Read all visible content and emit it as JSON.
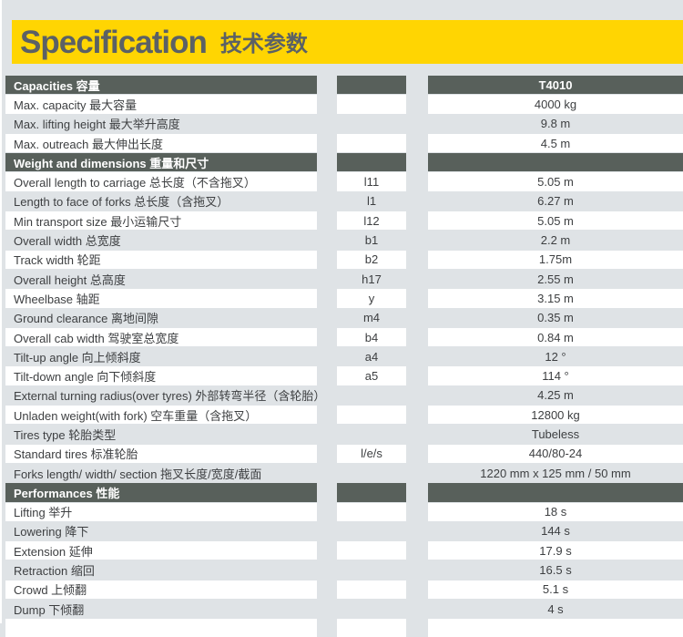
{
  "header": {
    "title_en": "Specification",
    "title_cn": "技术参数"
  },
  "model": "T4010",
  "colors": {
    "accent_yellow": "#FFD502",
    "section_dark": "#58605B",
    "page_gray": "#DFE3E6",
    "text_dark": "#3D3F41"
  },
  "table": {
    "columns": [
      "parameter",
      "symbol",
      "value"
    ],
    "rows": [
      {
        "type": "section",
        "label": "Capacities 容量",
        "symbol": "",
        "value": "T4010"
      },
      {
        "type": "data",
        "label": "Max. capacity 最大容量",
        "symbol": "",
        "value": "4000 kg"
      },
      {
        "type": "data",
        "label": "Max. lifting height 最大举升高度",
        "symbol": "",
        "value": "9.8 m"
      },
      {
        "type": "data",
        "label": "Max. outreach 最大伸出长度",
        "symbol": "",
        "value": "4.5 m"
      },
      {
        "type": "section",
        "label": "Weight and dimensions 重量和尺寸",
        "symbol": "",
        "value": ""
      },
      {
        "type": "data",
        "label": "Overall length to carriage 总长度（不含拖叉）",
        "symbol": "l11",
        "value": "5.05 m"
      },
      {
        "type": "data",
        "label": "Length to face of forks 总长度（含拖叉）",
        "symbol": "l1",
        "value": "6.27 m"
      },
      {
        "type": "data",
        "label": "Min transport size 最小运输尺寸",
        "symbol": "l12",
        "value": "5.05 m"
      },
      {
        "type": "data",
        "label": "Overall width 总宽度",
        "symbol": "b1",
        "value": "2.2 m"
      },
      {
        "type": "data",
        "label": "Track width 轮距",
        "symbol": "b2",
        "value": "1.75m"
      },
      {
        "type": "data",
        "label": "Overall height 总高度",
        "symbol": "h17",
        "value": "2.55 m"
      },
      {
        "type": "data",
        "label": "Wheelbase 轴距",
        "symbol": "y",
        "value": "3.15 m"
      },
      {
        "type": "data",
        "label": "Ground clearance 离地间隙",
        "symbol": "m4",
        "value": "0.35 m"
      },
      {
        "type": "data",
        "label": "Overall cab width 驾驶室总宽度",
        "symbol": "b4",
        "value": "0.84 m"
      },
      {
        "type": "data",
        "label": "Tilt-up angle 向上倾斜度",
        "symbol": "a4",
        "value": "12 °"
      },
      {
        "type": "data",
        "label": "Tilt-down angle 向下倾斜度",
        "symbol": "a5",
        "value": "114 °"
      },
      {
        "type": "data",
        "label": "External turning radius(over tyres) 外部转弯半径（含轮胎）",
        "symbol": "",
        "value": "4.25 m"
      },
      {
        "type": "data",
        "label": "Unladen weight(with fork) 空车重量（含拖叉）",
        "symbol": "",
        "value": "12800 kg"
      },
      {
        "type": "data",
        "label": "Tires type 轮胎类型",
        "symbol": "",
        "value": "Tubeless"
      },
      {
        "type": "data",
        "label": "Standard tires 标准轮胎",
        "symbol": "l/e/s",
        "value": "440/80-24"
      },
      {
        "type": "data",
        "label": "Forks length/ width/ section 拖叉长度/宽度/截面",
        "symbol": "",
        "value": "1220 mm x 125 mm / 50 mm"
      },
      {
        "type": "section",
        "label": "Performances 性能",
        "symbol": "",
        "value": ""
      },
      {
        "type": "data",
        "label": "Lifting 举升",
        "symbol": "",
        "value": "18 s"
      },
      {
        "type": "data",
        "label": "Lowering 降下",
        "symbol": "",
        "value": "144 s"
      },
      {
        "type": "data",
        "label": "Extension 延伸",
        "symbol": "",
        "value": "17.9 s"
      },
      {
        "type": "data",
        "label": "Retraction 缩回",
        "symbol": "",
        "value": "16.5 s"
      },
      {
        "type": "data",
        "label": "Crowd 上倾翻",
        "symbol": "",
        "value": "5.1 s"
      },
      {
        "type": "data",
        "label": "Dump 下倾翻",
        "symbol": "",
        "value": "4 s"
      }
    ]
  }
}
